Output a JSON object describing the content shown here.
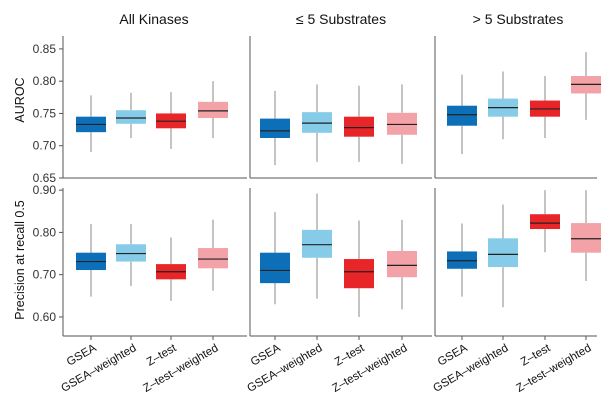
{
  "chart_data": {
    "type": "box",
    "columns": [
      "All Kinases",
      "≤ 5 Substrates",
      "> 5 Substrates"
    ],
    "methods": [
      "GSEA",
      "GSEA–weighted",
      "Z–test",
      "Z–test–weighted"
    ],
    "colors": {
      "GSEA": "#0d6fb8",
      "GSEA–weighted": "#86cce8",
      "Z–test": "#e8262a",
      "Z–test–weighted": "#f3a2a8"
    },
    "panels": [
      {
        "ylabel": "AUROC",
        "ylim": [
          0.65,
          0.87
        ],
        "yticks": [
          0.65,
          0.7,
          0.75,
          0.8,
          0.85
        ],
        "tick_labels": [
          "0.65",
          "0.70",
          "0.75",
          "0.80",
          "0.85"
        ],
        "groups": [
          [
            {
              "min": 0.69,
              "q1": 0.721,
              "median": 0.733,
              "q3": 0.745,
              "max": 0.778
            },
            {
              "min": 0.712,
              "q1": 0.734,
              "median": 0.743,
              "q3": 0.755,
              "max": 0.782
            },
            {
              "min": 0.695,
              "q1": 0.727,
              "median": 0.738,
              "q3": 0.75,
              "max": 0.783
            },
            {
              "min": 0.712,
              "q1": 0.743,
              "median": 0.754,
              "q3": 0.768,
              "max": 0.8
            }
          ],
          [
            {
              "min": 0.67,
              "q1": 0.712,
              "median": 0.723,
              "q3": 0.742,
              "max": 0.785
            },
            {
              "min": 0.675,
              "q1": 0.72,
              "median": 0.735,
              "q3": 0.752,
              "max": 0.795
            },
            {
              "min": 0.675,
              "q1": 0.714,
              "median": 0.728,
              "q3": 0.745,
              "max": 0.793
            },
            {
              "min": 0.672,
              "q1": 0.717,
              "median": 0.733,
              "q3": 0.751,
              "max": 0.795
            }
          ],
          [
            {
              "min": 0.687,
              "q1": 0.731,
              "median": 0.748,
              "q3": 0.762,
              "max": 0.81
            },
            {
              "min": 0.71,
              "q1": 0.745,
              "median": 0.759,
              "q3": 0.773,
              "max": 0.815
            },
            {
              "min": 0.712,
              "q1": 0.745,
              "median": 0.757,
              "q3": 0.77,
              "max": 0.808
            },
            {
              "min": 0.74,
              "q1": 0.781,
              "median": 0.795,
              "q3": 0.808,
              "max": 0.845
            }
          ]
        ]
      },
      {
        "ylabel": "Precision at recall 0.5",
        "ylim": [
          0.555,
          0.905
        ],
        "yticks": [
          0.6,
          0.7,
          0.8,
          0.9
        ],
        "tick_labels": [
          "0.60",
          "0.70",
          "0.80",
          "0.90"
        ],
        "groups": [
          [
            {
              "min": 0.648,
              "q1": 0.711,
              "median": 0.731,
              "q3": 0.752,
              "max": 0.82
            },
            {
              "min": 0.673,
              "q1": 0.731,
              "median": 0.75,
              "q3": 0.772,
              "max": 0.82
            },
            {
              "min": 0.638,
              "q1": 0.689,
              "median": 0.707,
              "q3": 0.725,
              "max": 0.788
            },
            {
              "min": 0.662,
              "q1": 0.715,
              "median": 0.737,
              "q3": 0.763,
              "max": 0.83
            }
          ],
          [
            {
              "min": 0.63,
              "q1": 0.68,
              "median": 0.71,
              "q3": 0.752,
              "max": 0.848
            },
            {
              "min": 0.643,
              "q1": 0.74,
              "median": 0.771,
              "q3": 0.806,
              "max": 0.892
            },
            {
              "min": 0.6,
              "q1": 0.668,
              "median": 0.707,
              "q3": 0.737,
              "max": 0.828
            },
            {
              "min": 0.618,
              "q1": 0.694,
              "median": 0.722,
              "q3": 0.756,
              "max": 0.83
            }
          ],
          [
            {
              "min": 0.648,
              "q1": 0.714,
              "median": 0.733,
              "q3": 0.755,
              "max": 0.821
            },
            {
              "min": 0.623,
              "q1": 0.718,
              "median": 0.748,
              "q3": 0.786,
              "max": 0.866
            },
            {
              "min": 0.753,
              "q1": 0.808,
              "median": 0.822,
              "q3": 0.843,
              "max": 0.9
            },
            {
              "min": 0.685,
              "q1": 0.752,
              "median": 0.785,
              "q3": 0.822,
              "max": 0.9
            }
          ]
        ]
      }
    ]
  }
}
